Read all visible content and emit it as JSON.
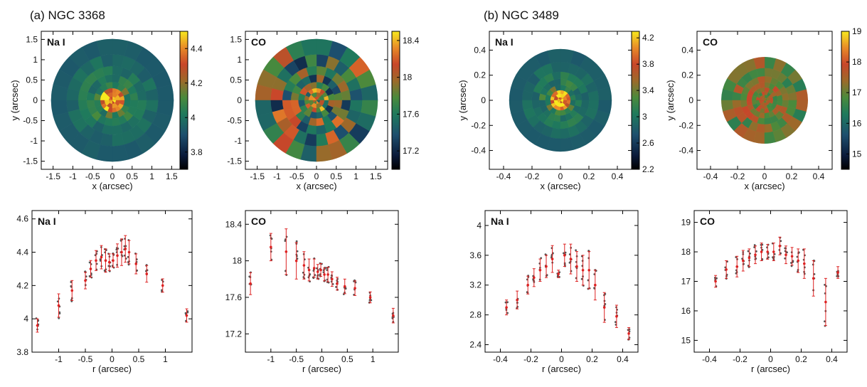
{
  "figure": {
    "panel_a_title": "(a)  NGC 3368",
    "panel_b_title": "(b)  NGC 3489"
  },
  "chart_data": [
    {
      "type": "heatmap",
      "galaxy": "NGC 3368",
      "inset_label": "Na I",
      "xlabel": "x (arcsec)",
      "ylabel": "y (arcsec)",
      "xlim": [
        -1.8,
        1.8
      ],
      "ylim": [
        -1.7,
        1.7
      ],
      "xticks": [
        -1.5,
        -1,
        -0.5,
        0,
        0.5,
        1,
        1.5
      ],
      "yticks": [
        -1.5,
        -1,
        -0.5,
        0,
        0.5,
        1,
        1.5
      ],
      "colorbar": {
        "min": 3.7,
        "max": 4.5,
        "ticks": [
          3.8,
          4,
          4.2,
          4.4
        ]
      },
      "radial_extent": 1.55
    },
    {
      "type": "heatmap",
      "galaxy": "NGC 3368",
      "inset_label": "CO",
      "xlabel": "x (arcsec)",
      "ylabel": "",
      "xlim": [
        -1.8,
        1.8
      ],
      "ylim": [
        -1.7,
        1.7
      ],
      "xticks": [
        -1.5,
        -1,
        -0.5,
        0,
        0.5,
        1,
        1.5
      ],
      "yticks": [
        -1.5,
        -1,
        -0.5,
        0,
        0.5,
        1,
        1.5
      ],
      "colorbar": {
        "min": 17.0,
        "max": 18.5,
        "ticks": [
          17.2,
          17.6,
          18,
          18.4
        ]
      },
      "radial_extent": 1.55
    },
    {
      "type": "heatmap",
      "galaxy": "NGC 3489",
      "inset_label": "Na I",
      "xlabel": "x (arcsec)",
      "ylabel": "y (arcsec)",
      "xlim": [
        -0.5,
        0.5
      ],
      "ylim": [
        -0.55,
        0.55
      ],
      "xticks": [
        -0.4,
        -0.2,
        0,
        0.2,
        0.4
      ],
      "yticks": [
        -0.4,
        -0.2,
        0,
        0.2,
        0.4
      ],
      "colorbar": {
        "min": 2.2,
        "max": 4.3,
        "ticks": [
          2.2,
          2.6,
          3,
          3.4,
          3.8,
          4.2
        ]
      },
      "radial_extent": 0.36
    },
    {
      "type": "heatmap",
      "galaxy": "NGC 3489",
      "inset_label": "CO",
      "xlabel": "x (arcsec)",
      "ylabel": "y (arcsec)",
      "xlim": [
        -0.5,
        0.5
      ],
      "ylim": [
        -0.55,
        0.55
      ],
      "xticks": [
        -0.4,
        -0.2,
        0,
        0.2,
        0.4
      ],
      "yticks": [
        -0.4,
        -0.2,
        0,
        0.2,
        0.4
      ],
      "colorbar": {
        "min": 14.5,
        "max": 19.0,
        "ticks": [
          15,
          16,
          17,
          18,
          19
        ]
      },
      "radial_extent": 0.32
    },
    {
      "type": "scatter",
      "galaxy": "NGC 3368",
      "inset_label": "Na I",
      "xlabel": "r (arcsec)",
      "ylabel": "",
      "xlim": [
        -1.5,
        1.5
      ],
      "ylim": [
        3.8,
        4.65
      ],
      "xticks": [
        -1,
        -0.5,
        0,
        0.5,
        1
      ],
      "yticks": [
        3.8,
        4,
        4.2,
        4.4,
        4.6
      ],
      "x": [
        -1.4,
        -1.0,
        -0.75,
        -0.5,
        -0.4,
        -0.3,
        -0.2,
        -0.12,
        -0.05,
        0.02,
        0.1,
        0.18,
        0.25,
        0.32,
        0.45,
        0.65,
        0.95,
        1.4
      ],
      "y": [
        3.96,
        4.08,
        4.17,
        4.23,
        4.3,
        4.35,
        4.37,
        4.35,
        4.34,
        4.35,
        4.38,
        4.4,
        4.42,
        4.4,
        4.33,
        4.27,
        4.2,
        4.02
      ],
      "err": [
        0.04,
        0.07,
        0.06,
        0.05,
        0.05,
        0.06,
        0.07,
        0.07,
        0.05,
        0.04,
        0.07,
        0.08,
        0.08,
        0.07,
        0.06,
        0.05,
        0.04,
        0.04
      ]
    },
    {
      "type": "scatter",
      "galaxy": "NGC 3368",
      "inset_label": "CO",
      "xlabel": "r (arcsec)",
      "ylabel": "",
      "xlim": [
        -1.5,
        1.5
      ],
      "ylim": [
        17.0,
        18.55
      ],
      "xticks": [
        -1,
        -0.5,
        0,
        0.5,
        1
      ],
      "yticks": [
        17.2,
        17.6,
        18,
        18.4
      ],
      "x": [
        -1.4,
        -1.0,
        -0.7,
        -0.5,
        -0.35,
        -0.25,
        -0.15,
        -0.08,
        -0.02,
        0.05,
        0.12,
        0.2,
        0.3,
        0.45,
        0.65,
        0.95,
        1.4
      ],
      "y": [
        17.75,
        18.15,
        18.1,
        18.0,
        17.95,
        17.9,
        17.92,
        17.88,
        17.9,
        17.85,
        17.85,
        17.8,
        17.75,
        17.72,
        17.7,
        17.6,
        17.4
      ],
      "err": [
        0.12,
        0.15,
        0.25,
        0.2,
        0.15,
        0.12,
        0.1,
        0.08,
        0.07,
        0.07,
        0.08,
        0.08,
        0.07,
        0.08,
        0.08,
        0.06,
        0.08
      ]
    },
    {
      "type": "scatter",
      "galaxy": "NGC 3489",
      "inset_label": "Na I",
      "xlabel": "r (arcsec)",
      "ylabel": "",
      "xlim": [
        -0.5,
        0.5
      ],
      "ylim": [
        2.3,
        4.2
      ],
      "xticks": [
        -0.4,
        -0.2,
        0,
        0.2,
        0.4
      ],
      "yticks": [
        2.4,
        2.8,
        3.2,
        3.6,
        4
      ],
      "x": [
        -0.36,
        -0.29,
        -0.22,
        -0.18,
        -0.14,
        -0.1,
        -0.06,
        -0.02,
        0.02,
        0.06,
        0.1,
        0.14,
        0.18,
        0.22,
        0.28,
        0.36,
        0.44
      ],
      "y": [
        2.9,
        3.0,
        3.2,
        3.3,
        3.4,
        3.45,
        3.55,
        3.35,
        3.6,
        3.55,
        3.45,
        3.4,
        3.4,
        3.2,
        2.9,
        2.78,
        2.55
      ],
      "err": [
        0.1,
        0.12,
        0.12,
        0.12,
        0.15,
        0.15,
        0.18,
        0.05,
        0.15,
        0.2,
        0.2,
        0.2,
        0.25,
        0.2,
        0.2,
        0.15,
        0.08
      ]
    },
    {
      "type": "scatter",
      "galaxy": "NGC 3489",
      "inset_label": "CO",
      "xlabel": "r (arcsec)",
      "ylabel": "",
      "xlim": [
        -0.5,
        0.5
      ],
      "ylim": [
        14.6,
        19.4
      ],
      "xticks": [
        -0.4,
        -0.2,
        0,
        0.2,
        0.4
      ],
      "yticks": [
        15,
        16,
        17,
        18,
        19
      ],
      "x": [
        -0.36,
        -0.29,
        -0.22,
        -0.18,
        -0.14,
        -0.1,
        -0.06,
        -0.02,
        0.02,
        0.06,
        0.1,
        0.14,
        0.18,
        0.22,
        0.28,
        0.36,
        0.44
      ],
      "y": [
        17.0,
        17.4,
        17.5,
        17.7,
        17.8,
        17.9,
        18.0,
        18.0,
        18.0,
        18.2,
        17.9,
        17.85,
        17.7,
        17.6,
        17.1,
        16.3,
        17.3
      ],
      "err": [
        0.2,
        0.3,
        0.35,
        0.35,
        0.3,
        0.3,
        0.3,
        0.25,
        0.3,
        0.3,
        0.3,
        0.3,
        0.4,
        0.5,
        0.6,
        0.8,
        0.2
      ]
    }
  ]
}
